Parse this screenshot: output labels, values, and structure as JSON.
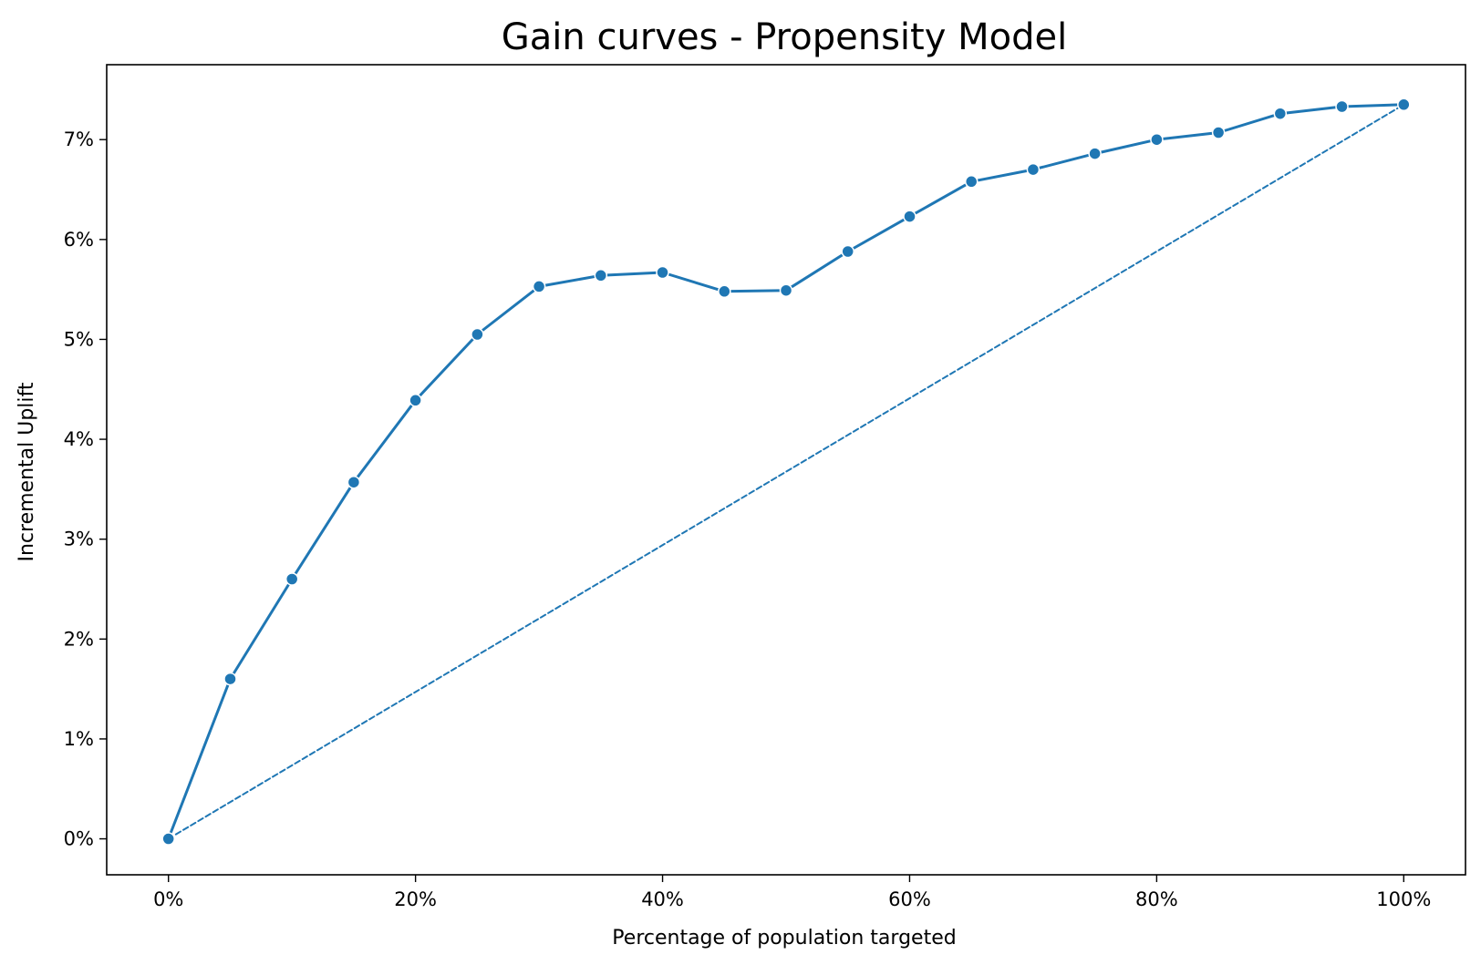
{
  "chart_data": {
    "type": "line",
    "title": "Gain curves - Propensity Model",
    "xlabel": "Percentage of population targeted",
    "ylabel": "Incremental Uplift",
    "xlim": [
      -5,
      105
    ],
    "ylim": [
      -0.36,
      7.75
    ],
    "x_ticks": [
      0,
      20,
      40,
      60,
      80,
      100
    ],
    "x_tick_labels": [
      "0%",
      "20%",
      "40%",
      "60%",
      "80%",
      "100%"
    ],
    "y_ticks": [
      0,
      1,
      2,
      3,
      4,
      5,
      6,
      7
    ],
    "y_tick_labels": [
      "0%",
      "1%",
      "2%",
      "3%",
      "4%",
      "5%",
      "6%",
      "7%"
    ],
    "grid": false,
    "series": [
      {
        "style": "solid-with-markers",
        "color": "#1f77b4",
        "x": [
          0,
          5,
          10,
          15,
          20,
          25,
          30,
          35,
          40,
          45,
          50,
          55,
          60,
          65,
          70,
          75,
          80,
          85,
          90,
          95,
          100
        ],
        "y": [
          0.0,
          1.6,
          2.6,
          3.57,
          4.39,
          5.05,
          5.53,
          5.64,
          5.67,
          5.48,
          5.49,
          5.88,
          6.23,
          6.58,
          6.7,
          6.86,
          7.0,
          7.07,
          7.26,
          7.33,
          7.35
        ]
      },
      {
        "style": "dashed",
        "color": "#1f77b4",
        "x": [
          0,
          100
        ],
        "y": [
          0.0,
          7.35
        ]
      }
    ]
  }
}
